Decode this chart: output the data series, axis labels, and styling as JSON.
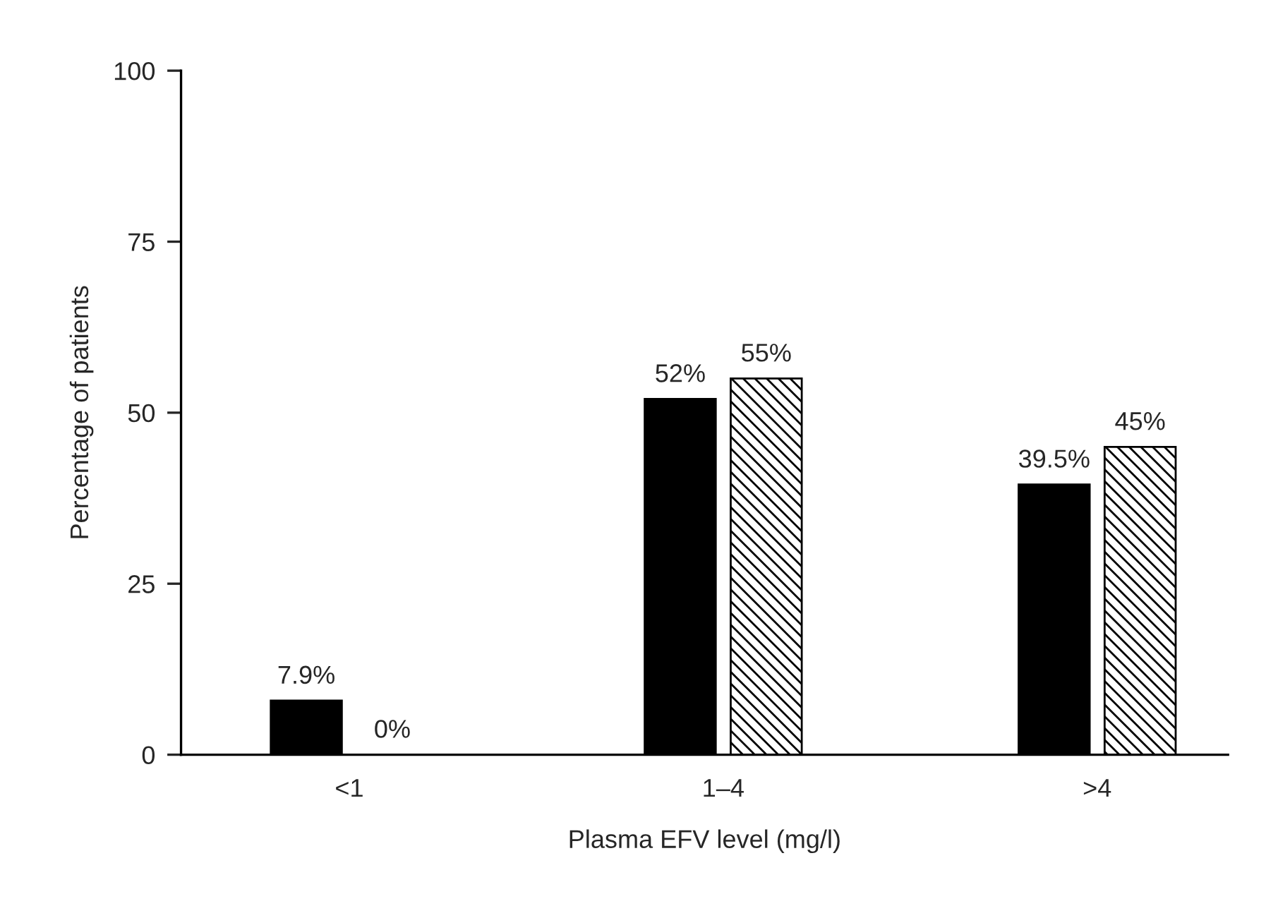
{
  "chart_data": {
    "type": "bar",
    "xlabel": "Plasma EFV level (mg/l)",
    "ylabel": "Percentage of patients",
    "categories": [
      "<1",
      "1–4",
      ">4"
    ],
    "series": [
      {
        "color": "#000000",
        "values": [
          7.9,
          52,
          39.5
        ],
        "value_labels": [
          "7.9%",
          "52%",
          "39.5%"
        ]
      },
      {
        "color": "#000000",
        "values": [
          0,
          55,
          45
        ],
        "value_labels": [
          "0%",
          "55%",
          "45%"
        ]
      }
    ],
    "ylim": [
      0,
      100
    ],
    "yticks": [
      0,
      25,
      50,
      75,
      100
    ],
    "grid": false,
    "legend": false
  }
}
